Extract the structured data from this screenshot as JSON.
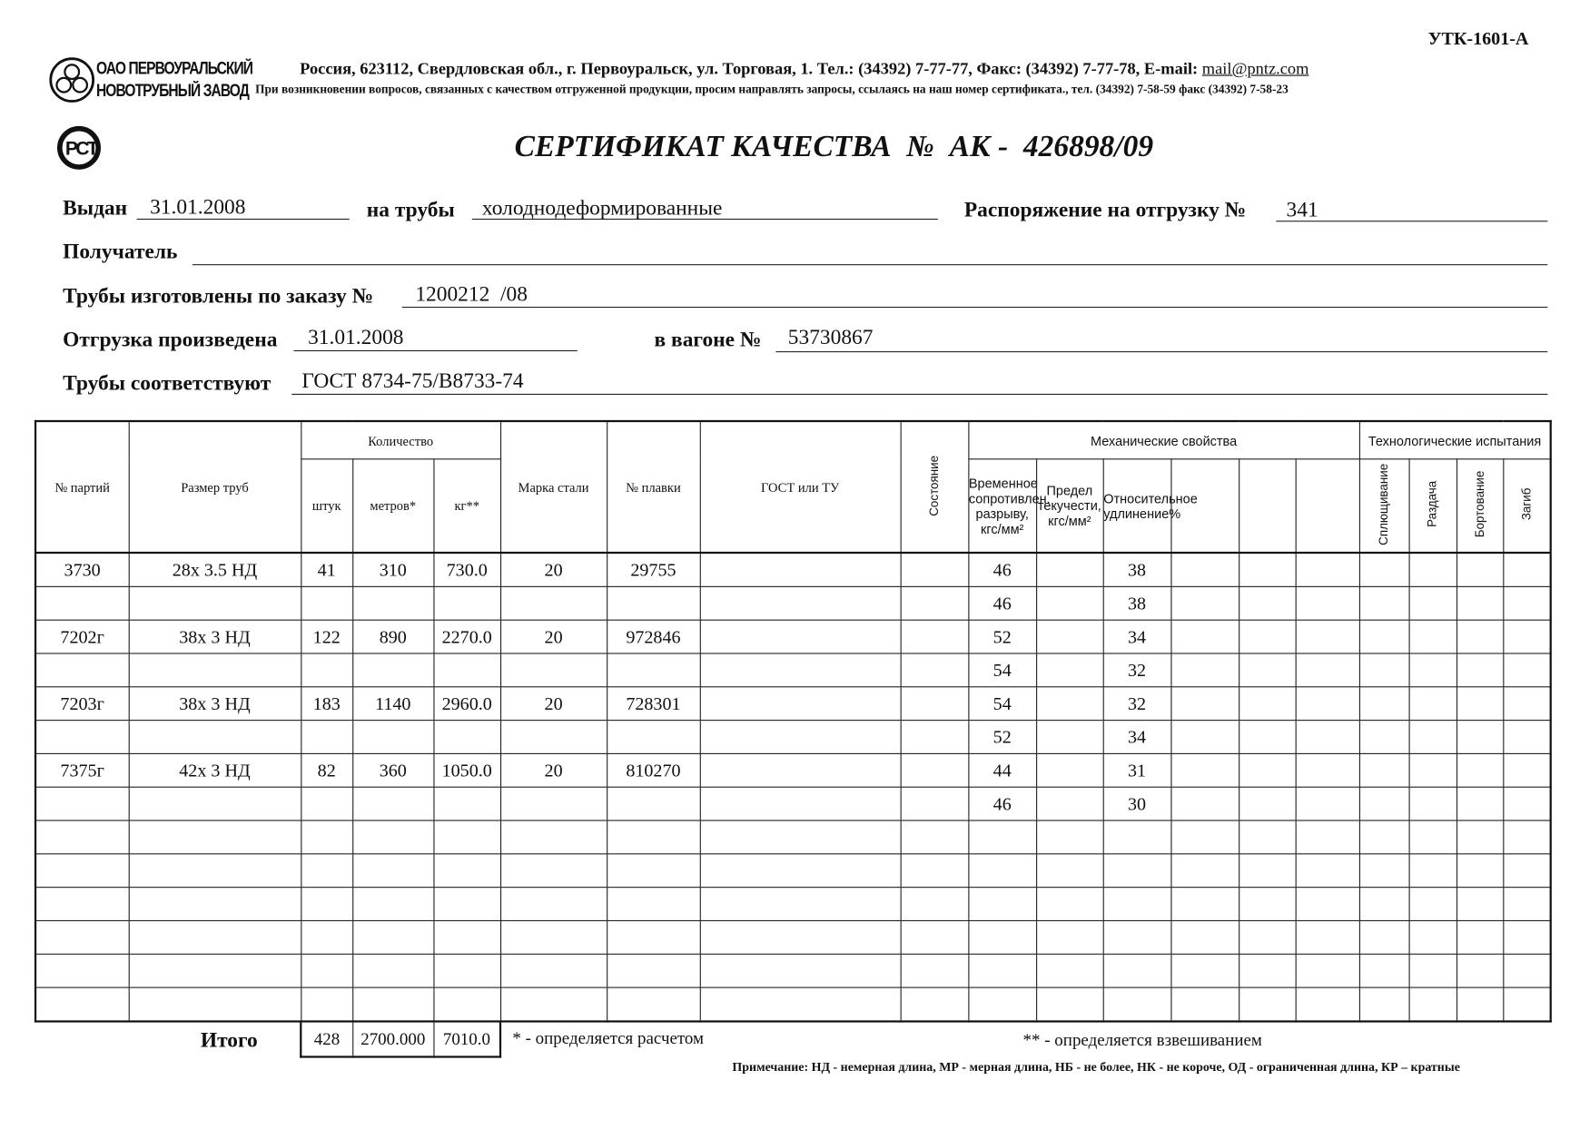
{
  "form_code": "УТК-1601-А",
  "company": {
    "logo_line1": "ОАО ПЕРВОУРАЛЬСКИЙ",
    "logo_line2": "НОВОТРУБНЫЙ ЗАВОД",
    "address": "Россия, 623112, Свердловская обл., г. Первоуральск, ул. Торговая, 1. Тел.: (34392) 7-77-77, Факс: (34392) 7-77-78, E-mail:",
    "email": "mail@pntz.com",
    "notice": "При возникновении вопросов, связанных с качеством отгруженной продукции, просим направлять запросы, ссылаясь на наш номер сертификата., тел. (34392) 7-58-59 факс (34392) 7-58-23",
    "cert_mark": "РСТ"
  },
  "title": "СЕРТИФИКАТ КАЧЕСТВА  №  АК -  426898/09",
  "fields": {
    "issued_label": "Выдан",
    "issued": "31.01.2008",
    "pipes_label": "на трубы",
    "pipes": "холоднодеформированные",
    "order_ship_label": "Распоряжение на отгрузку №",
    "order_ship": "341",
    "recipient_label": "Получатель",
    "recipient": "",
    "order_label": "Трубы изготовлены по заказу №",
    "order": "1200212  /08",
    "shipped_label": "Отгрузка произведена",
    "shipped": "31.01.2008",
    "wagon_label": "в вагоне №",
    "wagon": "53730867",
    "standard_label": "Трубы соответствуют",
    "standard": "ГОСТ 8734-75/В8733-74"
  },
  "table": {
    "headers": {
      "batch": "№ партий",
      "size": "Размер труб",
      "quantity": "Количество",
      "pcs": "штук",
      "meters": "метров*",
      "kg": "кг**",
      "steel": "Марка стали",
      "heat": "№ плавки",
      "gost": "ГОСТ или ТУ",
      "condition": "Состояние",
      "mech": "Механические свойства",
      "tensile": "Временное сопротивлен. разрыву, кгс/мм²",
      "yield": "Предел текучести, кгс/мм²",
      "elong": "Относительное удлинение%",
      "tech": "Технологические испытания",
      "flatten": "Сплющивание",
      "expand": "Раздача",
      "flange": "Бортование",
      "bend": "Загиб"
    },
    "rows": [
      [
        "3730",
        "28x 3.5 НД",
        "41",
        "310",
        "730.0",
        "20",
        "29755",
        "",
        "",
        "46",
        "",
        "38"
      ],
      [
        "",
        "",
        "",
        "",
        "",
        "",
        "",
        "",
        "",
        "46",
        "",
        "38"
      ],
      [
        "7202г",
        "38x 3 НД",
        "122",
        "890",
        "2270.0",
        "20",
        "972846",
        "",
        "",
        "52",
        "",
        "34"
      ],
      [
        "",
        "",
        "",
        "",
        "",
        "",
        "",
        "",
        "",
        "54",
        "",
        "32"
      ],
      [
        "7203г",
        "38x 3 НД",
        "183",
        "1140",
        "2960.0",
        "20",
        "728301",
        "",
        "",
        "54",
        "",
        "32"
      ],
      [
        "",
        "",
        "",
        "",
        "",
        "",
        "",
        "",
        "",
        "52",
        "",
        "34"
      ],
      [
        "7375г",
        "42x 3 НД",
        "82",
        "360",
        "1050.0",
        "20",
        "810270",
        "",
        "",
        "44",
        "",
        "31"
      ],
      [
        "",
        "",
        "",
        "",
        "",
        "",
        "",
        "",
        "",
        "46",
        "",
        "30"
      ],
      [
        "",
        "",
        "",
        "",
        "",
        "",
        "",
        "",
        "",
        "",
        "",
        ""
      ],
      [
        "",
        "",
        "",
        "",
        "",
        "",
        "",
        "",
        "",
        "",
        "",
        ""
      ],
      [
        "",
        "",
        "",
        "",
        "",
        "",
        "",
        "",
        "",
        "",
        "",
        ""
      ],
      [
        "",
        "",
        "",
        "",
        "",
        "",
        "",
        "",
        "",
        "",
        "",
        ""
      ],
      [
        "",
        "",
        "",
        "",
        "",
        "",
        "",
        "",
        "",
        "",
        "",
        ""
      ],
      [
        "",
        "",
        "",
        "",
        "",
        "",
        "",
        "",
        "",
        "",
        "",
        ""
      ]
    ]
  },
  "totals": {
    "label": "Итого",
    "pcs": "428",
    "meters": "2700.000",
    "kg": "7010.0"
  },
  "footnotes": {
    "calc": "* - определяется расчетом",
    "weigh": "** - определяется взвешиванием",
    "note": "Примечание: НД - немерная длина, МР - мерная длина, НБ - не более, НК - не короче, ОД - ограниченная длина, КР – кратные"
  }
}
